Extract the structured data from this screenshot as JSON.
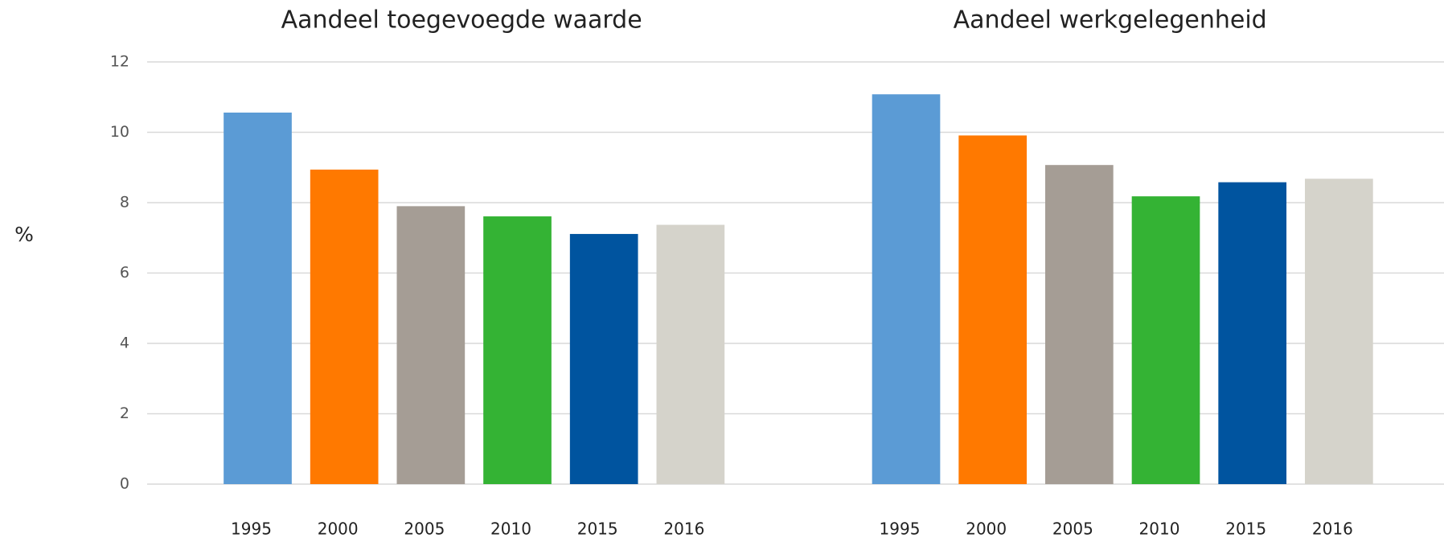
{
  "chart_data": {
    "type": "bar",
    "y_label": "%",
    "categories": [
      "Aandeel toegevoegde waarde",
      "Aandeel werkgelegenheid"
    ],
    "series": [
      {
        "name": "1995",
        "color": "#5b9bd5",
        "values": [
          10.56,
          11.08
        ]
      },
      {
        "name": "2000",
        "color": "#ff7900",
        "values": [
          8.94,
          9.91
        ]
      },
      {
        "name": "2005",
        "color": "#a59d95",
        "values": [
          7.9,
          9.07
        ]
      },
      {
        "name": "2010",
        "color": "#34b334",
        "values": [
          7.61,
          8.18
        ]
      },
      {
        "name": "2015",
        "color": "#00549f",
        "values": [
          7.11,
          8.58
        ]
      },
      {
        "name": "2016",
        "color": "#d5d3cb",
        "values": [
          7.37,
          8.68
        ]
      }
    ],
    "ylim": [
      0,
      12
    ],
    "yticks": [
      0,
      2,
      4,
      6,
      8,
      10,
      12
    ],
    "grid": true
  }
}
